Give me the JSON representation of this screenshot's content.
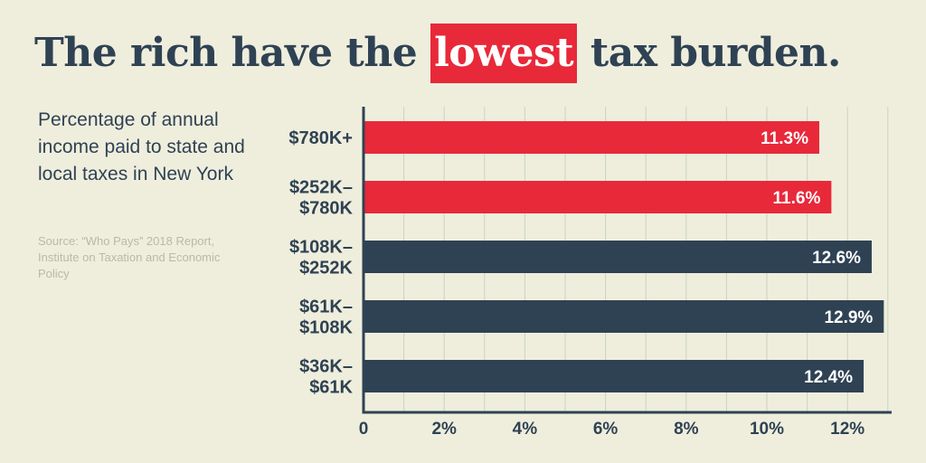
{
  "header": {
    "title_before": "The rich have the",
    "title_highlight": "lowest",
    "title_after": "tax burden."
  },
  "sidebar": {
    "subtitle": "Percentage of annual income paid to state and local taxes in New York",
    "source": "Source: “Who Pays” 2018 Report, Institute on Taxation and Economic Policy"
  },
  "colors": {
    "background": "#efeedd",
    "dark_bar": "#2f4253",
    "highlight_bar": "#e8293a",
    "grid": "#c9d3c3"
  },
  "chart_data": {
    "type": "bar",
    "orientation": "horizontal",
    "categories": [
      [
        "$780K+"
      ],
      [
        "$252K–",
        "$780K"
      ],
      [
        "$108K–",
        "$252K"
      ],
      [
        "$61K–",
        "$108K"
      ],
      [
        "$36K–",
        "$61K"
      ]
    ],
    "values": [
      11.3,
      11.6,
      12.6,
      12.9,
      12.4
    ],
    "value_labels": [
      "11.3%",
      "11.6%",
      "12.6%",
      "12.9%",
      "12.4%"
    ],
    "highlighted": [
      true,
      true,
      false,
      false,
      false
    ],
    "xlim": [
      0,
      13
    ],
    "xticks": [
      0,
      2,
      4,
      6,
      8,
      10,
      12
    ],
    "xtick_labels": [
      "0",
      "2%",
      "4%",
      "6%",
      "8%",
      "10%",
      "12%"
    ],
    "grid": true
  }
}
